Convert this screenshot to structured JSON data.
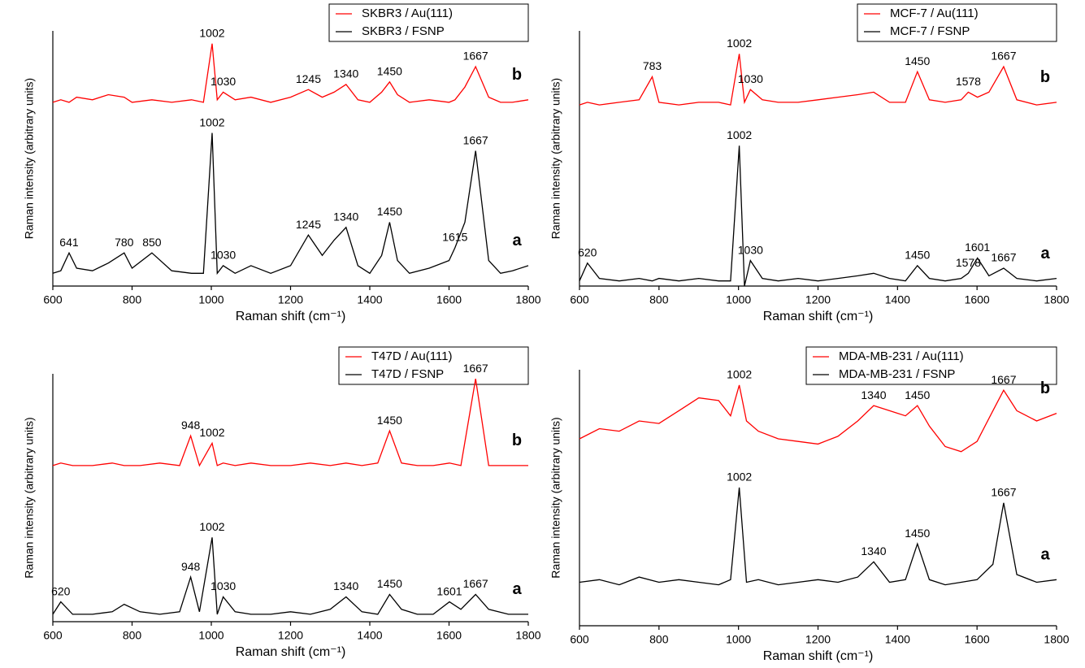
{
  "chart_data": [
    {
      "type": "line",
      "xlabel": "Raman shift (cm⁻¹)",
      "ylabel": "Raman intensity (arbitrary units)",
      "xlim": [
        600,
        1800
      ],
      "xticks": [
        600,
        800,
        1000,
        1200,
        1400,
        1600,
        1800
      ],
      "ylim": [
        0,
        100
      ],
      "x": [
        600,
        620,
        641,
        660,
        700,
        740,
        780,
        800,
        850,
        900,
        950,
        980,
        1002,
        1015,
        1030,
        1060,
        1100,
        1150,
        1200,
        1245,
        1280,
        1310,
        1340,
        1370,
        1400,
        1430,
        1450,
        1470,
        1500,
        1550,
        1600,
        1615,
        1640,
        1667,
        1700,
        1730,
        1760,
        1800
      ],
      "series": [
        {
          "name": "SKBR3 / Au(111)",
          "color": "#ff0000",
          "tag": "b",
          "annotations": [
            "1002",
            "1030",
            "1245",
            "1340",
            "1450",
            "1667"
          ],
          "values": [
            72,
            73,
            72,
            74,
            73,
            75,
            74,
            72,
            73,
            72,
            73,
            72,
            95,
            73,
            76,
            73,
            74,
            72,
            74,
            77,
            74,
            76,
            79,
            73,
            72,
            76,
            80,
            75,
            72,
            73,
            72,
            73,
            78,
            86,
            74,
            72,
            72,
            73
          ]
        },
        {
          "name": "SKBR3 / FSNP",
          "color": "#000000",
          "tag": "a",
          "annotations": [
            "641",
            "780",
            "850",
            "1002",
            "1030",
            "1245",
            "1340",
            "1450",
            "1615",
            "1667"
          ],
          "values": [
            5,
            6,
            13,
            7,
            6,
            9,
            13,
            7,
            13,
            6,
            5,
            5,
            60,
            5,
            8,
            5,
            8,
            5,
            8,
            20,
            12,
            18,
            23,
            8,
            5,
            12,
            25,
            10,
            5,
            7,
            10,
            15,
            25,
            53,
            10,
            5,
            6,
            8
          ]
        }
      ]
    },
    {
      "type": "line",
      "xlabel": "Raman shift (cm⁻¹)",
      "ylabel": "Raman intensity (arbitrary units)",
      "xlim": [
        600,
        1800
      ],
      "xticks": [
        600,
        800,
        1000,
        1200,
        1400,
        1600,
        1800
      ],
      "ylim": [
        0,
        100
      ],
      "x": [
        600,
        620,
        650,
        700,
        750,
        783,
        800,
        850,
        900,
        950,
        980,
        1002,
        1015,
        1030,
        1060,
        1100,
        1150,
        1200,
        1250,
        1300,
        1340,
        1380,
        1420,
        1450,
        1480,
        1520,
        1560,
        1578,
        1601,
        1630,
        1667,
        1700,
        1750,
        1800
      ],
      "series": [
        {
          "name": "MCF-7 / Au(111)",
          "color": "#ff0000",
          "tag": "b",
          "annotations": [
            "783",
            "1002",
            "1030",
            "1450",
            "1578",
            "1667"
          ],
          "values": [
            71,
            72,
            71,
            72,
            73,
            82,
            72,
            71,
            72,
            72,
            71,
            91,
            72,
            77,
            73,
            72,
            72,
            73,
            74,
            75,
            76,
            72,
            72,
            84,
            73,
            72,
            73,
            76,
            74,
            76,
            86,
            73,
            71,
            72
          ]
        },
        {
          "name": "MCF-7 / FSNP",
          "color": "#000000",
          "tag": "a",
          "annotations": [
            "620",
            "1002",
            "1030",
            "1450",
            "1578",
            "1601",
            "1667"
          ],
          "values": [
            2,
            9,
            3,
            2,
            3,
            2,
            3,
            2,
            3,
            2,
            2,
            55,
            0,
            10,
            3,
            2,
            3,
            2,
            3,
            4,
            5,
            3,
            2,
            8,
            3,
            2,
            3,
            5,
            11,
            4,
            7,
            3,
            2,
            3
          ]
        }
      ]
    },
    {
      "type": "line",
      "xlabel": "Raman shift (cm⁻¹)",
      "ylabel": "Raman intensity (arbitrary units)",
      "xlim": [
        600,
        1800
      ],
      "xticks": [
        600,
        800,
        1000,
        1200,
        1400,
        1600,
        1800
      ],
      "ylim": [
        0,
        100
      ],
      "x": [
        600,
        620,
        650,
        700,
        750,
        780,
        820,
        870,
        920,
        948,
        970,
        1002,
        1015,
        1030,
        1060,
        1100,
        1150,
        1200,
        1250,
        1300,
        1340,
        1380,
        1420,
        1450,
        1480,
        1520,
        1560,
        1601,
        1630,
        1667,
        1700,
        1750,
        1800
      ],
      "series": [
        {
          "name": "T47D / Au(111)",
          "color": "#ff0000",
          "tag": "b",
          "annotations": [
            "948",
            "1002",
            "1450",
            "1667"
          ],
          "values": [
            63,
            64,
            63,
            63,
            64,
            63,
            63,
            64,
            63,
            75,
            63,
            72,
            63,
            64,
            63,
            64,
            63,
            63,
            64,
            63,
            64,
            63,
            64,
            77,
            64,
            63,
            63,
            64,
            63,
            98,
            63,
            63,
            63
          ]
        },
        {
          "name": "T47D / FSNP",
          "color": "#000000",
          "tag": "a",
          "annotations": [
            "620",
            "948",
            "1002",
            "1030",
            "1340",
            "1450",
            "1601",
            "1667"
          ],
          "values": [
            3,
            8,
            3,
            3,
            4,
            7,
            4,
            3,
            4,
            18,
            4,
            34,
            3,
            10,
            4,
            3,
            3,
            4,
            3,
            5,
            10,
            4,
            3,
            11,
            5,
            3,
            3,
            8,
            5,
            11,
            5,
            3,
            3
          ]
        }
      ]
    },
    {
      "type": "line",
      "xlabel": "Raman shift (cm⁻¹)",
      "ylabel": "Raman intensity (arbitrary units)",
      "xlim": [
        600,
        1800
      ],
      "xticks": [
        600,
        800,
        1000,
        1200,
        1400,
        1600,
        1800
      ],
      "ylim": [
        0,
        100
      ],
      "x": [
        600,
        650,
        700,
        750,
        800,
        850,
        900,
        950,
        980,
        1002,
        1020,
        1050,
        1100,
        1150,
        1200,
        1250,
        1300,
        1340,
        1380,
        1420,
        1450,
        1480,
        1520,
        1560,
        1600,
        1640,
        1667,
        1700,
        1750,
        1800
      ],
      "series": [
        {
          "name": "MDA-MB-231 / Au(111)",
          "color": "#ff0000",
          "tag": "b",
          "annotations": [
            "1002",
            "1340",
            "1450",
            "1667"
          ],
          "values": [
            73,
            77,
            76,
            80,
            79,
            84,
            89,
            88,
            82,
            94,
            80,
            76,
            73,
            72,
            71,
            74,
            80,
            86,
            84,
            82,
            86,
            78,
            70,
            68,
            72,
            84,
            92,
            84,
            80,
            83
          ]
        },
        {
          "name": "MDA-MB-231 / FSNP",
          "color": "#000000",
          "tag": "a",
          "annotations": [
            "1002",
            "1340",
            "1450",
            "1667"
          ],
          "values": [
            17,
            18,
            16,
            19,
            17,
            18,
            17,
            16,
            18,
            54,
            17,
            18,
            16,
            17,
            18,
            17,
            19,
            25,
            17,
            18,
            32,
            18,
            16,
            17,
            18,
            24,
            48,
            20,
            17,
            18
          ]
        }
      ]
    }
  ]
}
